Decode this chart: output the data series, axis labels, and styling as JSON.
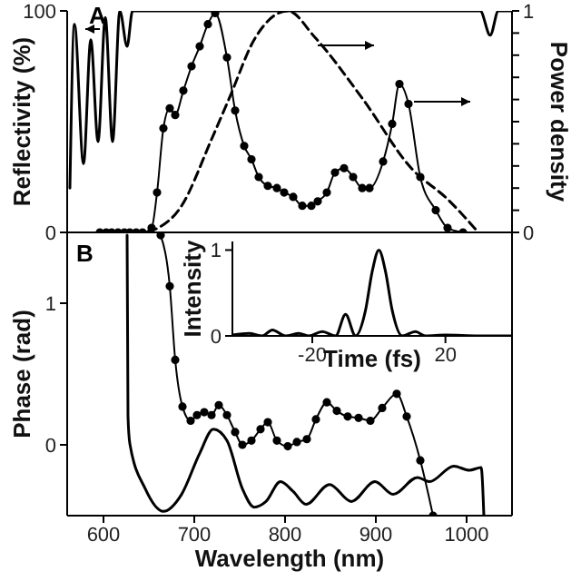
{
  "chart_data": [
    {
      "type": "line",
      "ylabel": "Reflectivity (%)",
      "y2label": "Power density",
      "xlim": [
        560,
        1050
      ],
      "ylim": [
        0,
        100
      ],
      "yticks": [
        0,
        100
      ],
      "y2lim": [
        0,
        1
      ],
      "y2ticks": [
        0,
        {
          "value": 0.1,
          "label": null
        },
        {
          "value": 0.2,
          "label": null
        },
        {
          "value": 0.3,
          "label": null
        },
        {
          "value": 0.4,
          "label": null
        },
        {
          "value": 0.5,
          "label": null
        },
        {
          "value": 0.6,
          "label": null
        },
        {
          "value": 0.7,
          "label": null
        },
        {
          "value": 0.8,
          "label": null
        },
        {
          "value": 0.9,
          "label": null
        },
        1
      ],
      "tick_labels": "y",
      "annotations": [
        "A"
      ],
      "series": [
        {
          "type": "line",
          "color": "#000000",
          "marker": "none",
          "line_style": "solid",
          "x": [
            563,
            568,
            578,
            586,
            594,
            602,
            610,
            618,
            626,
            632,
            700,
            800,
            900,
            1015,
            1026,
            1035,
            1050
          ],
          "values": [
            20,
            94,
            31,
            87,
            41,
            97,
            41,
            100,
            84,
            100,
            100,
            100,
            100,
            100,
            89,
            100,
            100
          ]
        },
        {
          "type": "line",
          "color": "#000000",
          "marker": "circle",
          "line_style": "solid",
          "x": [
            596,
            603,
            609,
            616,
            623,
            629,
            636,
            643,
            653,
            659,
            666,
            673,
            679,
            688,
            697,
            706,
            715,
            723,
            736,
            745,
            755,
            763,
            771,
            781,
            791,
            799,
            809,
            819,
            829,
            836,
            846,
            855,
            865,
            875,
            885,
            893,
            908,
            918,
            926,
            936,
            949,
            966,
            979,
            996
          ],
          "values": [
            0,
            0,
            0,
            0,
            0,
            0,
            0,
            0,
            2,
            18,
            47,
            56,
            53,
            64,
            75,
            84,
            94,
            99,
            79,
            55,
            39,
            33,
            25,
            21,
            20,
            18,
            16,
            12,
            12,
            14,
            18,
            27,
            29,
            25,
            20,
            20,
            32,
            49,
            67,
            58,
            25,
            10,
            2,
            0
          ]
        },
        {
          "type": "line",
          "color": "#000000",
          "marker": "none",
          "line_style": "dashed",
          "axis": "y2",
          "x": [
            649,
            686,
            719,
            739,
            766,
            803,
            833,
            886,
            939,
            979,
            1013
          ],
          "values": [
            0,
            0.12,
            0.42,
            0.61,
            0.87,
            1,
            0.88,
            0.6,
            0.29,
            0.15,
            0
          ]
        }
      ]
    },
    {
      "type": "line",
      "xlabel": "Wavelength (nm)",
      "ylabel": "Phase (rad)",
      "xlim": [
        560,
        1050
      ],
      "xticks": [
        600,
        700,
        800,
        900,
        1000
      ],
      "ylim": [
        -0.5,
        1.5
      ],
      "yticks": [
        0,
        1
      ],
      "annotations": [
        "B"
      ],
      "series": [
        {
          "type": "line",
          "color": "#000000",
          "marker": "circle",
          "line_style": "solid",
          "x": [
            663,
            673,
            679,
            687,
            696,
            703,
            711,
            719,
            727,
            736,
            745,
            753,
            763,
            773,
            781,
            791,
            803,
            813,
            824,
            834,
            846,
            857,
            869,
            881,
            894,
            907,
            923,
            934,
            949,
            963
          ],
          "values": [
            1.48,
            1.12,
            0.6,
            0.27,
            0.17,
            0.21,
            0.23,
            0.21,
            0.28,
            0.21,
            0.09,
            0,
            0.03,
            0.11,
            0.16,
            0.03,
            -0.01,
            0.02,
            0.04,
            0.18,
            0.3,
            0.24,
            0.2,
            0.19,
            0.17,
            0.26,
            0.36,
            0.2,
            -0.11,
            -0.5
          ]
        },
        {
          "type": "line",
          "color": "#000000",
          "marker": "none",
          "line_style": "solid",
          "x": [
            626,
            627,
            629,
            646,
            666,
            686,
            706,
            721,
            736,
            753,
            766,
            779,
            795,
            809,
            823,
            849,
            873,
            899,
            919,
            946,
            959,
            986,
            1003,
            1016,
            1019
          ],
          "values": [
            1.48,
            0.2,
            0.01,
            -0.31,
            -0.47,
            -0.35,
            -0.06,
            0.11,
            0.03,
            -0.31,
            -0.44,
            -0.4,
            -0.26,
            -0.33,
            -0.42,
            -0.28,
            -0.4,
            -0.26,
            -0.35,
            -0.23,
            -0.26,
            -0.15,
            -0.18,
            -0.16,
            -0.5
          ]
        }
      ]
    },
    {
      "type": "line",
      "xlabel": "Time (fs)",
      "ylabel": "Intensity",
      "xlim": [
        -44,
        40
      ],
      "xticks": [
        -20,
        20
      ],
      "ylim": [
        0,
        1.1
      ],
      "yticks": [
        0,
        1
      ],
      "series": [
        {
          "type": "line",
          "color": "#000000",
          "marker": "none",
          "line_style": "solid",
          "x": [
            -44,
            -39,
            -35,
            -32,
            -28,
            -24,
            -21,
            -17,
            -13,
            -10,
            -7,
            -4,
            -2,
            0,
            2,
            4,
            7,
            11,
            14,
            20,
            30,
            40
          ],
          "values": [
            0.01,
            0.03,
            0,
            0.07,
            0,
            0.03,
            0,
            0.05,
            0,
            0.25,
            0,
            0.3,
            0.75,
            1,
            0.75,
            0.3,
            0,
            0.05,
            0,
            0.01,
            0,
            0
          ]
        }
      ]
    }
  ]
}
